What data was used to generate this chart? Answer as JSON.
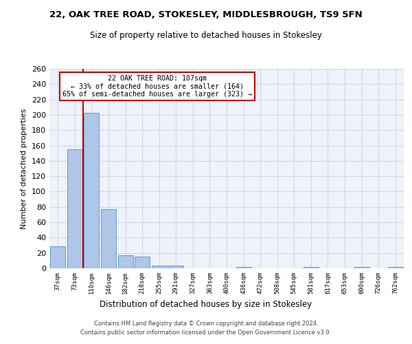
{
  "title": "22, OAK TREE ROAD, STOKESLEY, MIDDLESBROUGH, TS9 5FN",
  "subtitle": "Size of property relative to detached houses in Stokesley",
  "xlabel": "Distribution of detached houses by size in Stokesley",
  "ylabel": "Number of detached properties",
  "bar_color": "#aec6e8",
  "bar_edge_color": "#5a9fd4",
  "grid_color": "#d0d8e8",
  "background_color": "#eef2f9",
  "annotation_box_color": "#cc0000",
  "vline_color": "#cc0000",
  "categories": [
    "37sqm",
    "73sqm",
    "110sqm",
    "146sqm",
    "182sqm",
    "218sqm",
    "255sqm",
    "291sqm",
    "327sqm",
    "363sqm",
    "400sqm",
    "436sqm",
    "472sqm",
    "508sqm",
    "545sqm",
    "581sqm",
    "617sqm",
    "653sqm",
    "690sqm",
    "726sqm",
    "762sqm"
  ],
  "values": [
    29,
    155,
    203,
    77,
    17,
    15,
    4,
    4,
    0,
    0,
    0,
    2,
    0,
    0,
    0,
    2,
    0,
    0,
    2,
    0,
    2
  ],
  "vline_x_index": 2,
  "annotation_text": "22 OAK TREE ROAD: 107sqm\n← 33% of detached houses are smaller (164)\n65% of semi-detached houses are larger (323) →",
  "ylim": [
    0,
    260
  ],
  "yticks": [
    0,
    20,
    40,
    60,
    80,
    100,
    120,
    140,
    160,
    180,
    200,
    220,
    240,
    260
  ],
  "footer_line1": "Contains HM Land Registry data © Crown copyright and database right 2024.",
  "footer_line2": "Contains public sector information licensed under the Open Government Licence v3.0."
}
